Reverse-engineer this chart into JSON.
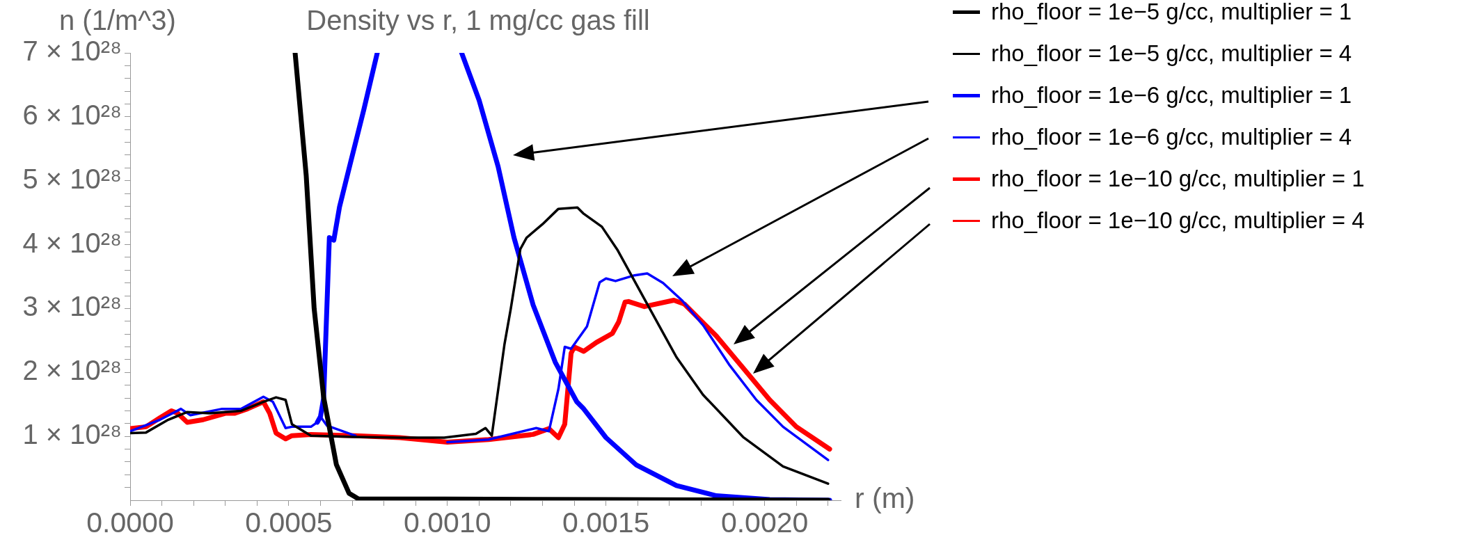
{
  "chart_data": {
    "type": "line",
    "title": "Density vs r, 1 mg/cc gas fill",
    "xlabel": "r (m)",
    "ylabel": "n (1/m^3)",
    "legend": "right",
    "grid": false,
    "marker": "none",
    "line_style": "solid",
    "xlim": [
      0,
      0.00224
    ],
    "ylim": [
      0,
      7e+28
    ],
    "xticks": [
      {
        "value": 0,
        "label": "0.0000"
      },
      {
        "value": 0.0001,
        "label": null
      },
      {
        "value": 0.0002,
        "label": null
      },
      {
        "value": 0.0003,
        "label": null
      },
      {
        "value": 0.0004,
        "label": null
      },
      {
        "value": 0.0005,
        "label": "0.0005"
      },
      {
        "value": 0.0006,
        "label": null
      },
      {
        "value": 0.0007,
        "label": null
      },
      {
        "value": 0.0008,
        "label": null
      },
      {
        "value": 0.0009,
        "label": null
      },
      {
        "value": 0.001,
        "label": "0.0010"
      },
      {
        "value": 0.0011,
        "label": null
      },
      {
        "value": 0.0012,
        "label": null
      },
      {
        "value": 0.0013,
        "label": null
      },
      {
        "value": 0.0014,
        "label": null
      },
      {
        "value": 0.0015,
        "label": "0.0015"
      },
      {
        "value": 0.0016,
        "label": null
      },
      {
        "value": 0.0017,
        "label": null
      },
      {
        "value": 0.0018,
        "label": null
      },
      {
        "value": 0.0019,
        "label": null
      },
      {
        "value": 0.002,
        "label": "0.0020"
      },
      {
        "value": 0.0021,
        "label": null
      },
      {
        "value": 0.0022,
        "label": null
      }
    ],
    "yticks": [
      {
        "value": 2e+27,
        "label": null
      },
      {
        "value": 4e+27,
        "label": null
      },
      {
        "value": 6e+27,
        "label": null
      },
      {
        "value": 8e+27,
        "label": null
      },
      {
        "value": 1e+28,
        "label": "1 × 10²⁸"
      },
      {
        "value": 1.2e+28,
        "label": null
      },
      {
        "value": 1.4e+28,
        "label": null
      },
      {
        "value": 1.6e+28,
        "label": null
      },
      {
        "value": 1.8e+28,
        "label": null
      },
      {
        "value": 2e+28,
        "label": "2 × 10²⁸"
      },
      {
        "value": 2.2e+28,
        "label": null
      },
      {
        "value": 2.4e+28,
        "label": null
      },
      {
        "value": 2.6e+28,
        "label": null
      },
      {
        "value": 2.8e+28,
        "label": null
      },
      {
        "value": 3e+28,
        "label": "3 × 10²⁸"
      },
      {
        "value": 3.2e+28,
        "label": null
      },
      {
        "value": 3.4e+28,
        "label": null
      },
      {
        "value": 3.6e+28,
        "label": null
      },
      {
        "value": 3.8e+28,
        "label": null
      },
      {
        "value": 4e+28,
        "label": "4 × 10²⁸"
      },
      {
        "value": 4.2e+28,
        "label": null
      },
      {
        "value": 4.4e+28,
        "label": null
      },
      {
        "value": 4.6e+28,
        "label": null
      },
      {
        "value": 4.8e+28,
        "label": null
      },
      {
        "value": 5e+28,
        "label": "5 × 10²⁸"
      },
      {
        "value": 5.2e+28,
        "label": null
      },
      {
        "value": 5.4e+28,
        "label": null
      },
      {
        "value": 5.6e+28,
        "label": null
      },
      {
        "value": 5.8e+28,
        "label": null
      },
      {
        "value": 6e+28,
        "label": "6 × 10²⁸"
      },
      {
        "value": 6.2e+28,
        "label": null
      },
      {
        "value": 6.4e+28,
        "label": null
      },
      {
        "value": 6.6e+28,
        "label": null
      },
      {
        "value": 6.8e+28,
        "label": null
      },
      {
        "value": 7e+28,
        "label": "7 × 10²⁸"
      }
    ],
    "series": [
      {
        "name": "rho_floor = 1e−5 g/cc, multiplier = 1",
        "color": "#000000",
        "x": [
          0.00052,
          0.000555,
          0.00058,
          0.00061,
          0.00065,
          0.00069,
          0.00072,
          0.00099,
          0.0015,
          0.0022
        ],
        "values": [
          7e+28,
          5.08e+28,
          3e+28,
          1.61e+28,
          5.6e+27,
          1.1e+27,
          2e+26,
          2e+26,
          1e+26,
          0
        ]
      },
      {
        "name": "rho_floor = 1e−5 g/cc, multiplier = 4",
        "color": "#000000",
        "x": [
          0,
          5e-05,
          0.00012,
          0.00018,
          0.00025,
          0.00035,
          0.00042,
          0.00046,
          0.00049,
          0.00051,
          0.00057,
          0.00071,
          0.00085,
          0.00099,
          0.00109,
          0.00112,
          0.00114,
          0.00118,
          0.0012,
          0.00123,
          0.00125,
          0.0013,
          0.00135,
          0.00141,
          0.001428,
          0.001487,
          0.001537,
          0.001621,
          0.001722,
          0.001806,
          0.001932,
          0.002058,
          0.0022
        ],
        "values": [
          1.05e+28,
          1.06e+28,
          1.26e+28,
          1.38e+28,
          1.36e+28,
          1.4e+28,
          1.54e+28,
          1.61e+28,
          1.57e+28,
          1.19e+28,
          1.01e+28,
          9.9e+27,
          9.8e+27,
          9.8e+27,
          1.04e+28,
          1.13e+28,
          1.01e+28,
          2.44e+28,
          3e+28,
          3.93e+28,
          4.11e+28,
          4.32e+28,
          4.56e+28,
          4.58e+28,
          4.49e+28,
          4.28e+28,
          3.91e+28,
          3.15e+28,
          2.24e+28,
          1.65e+28,
          9.9e+27,
          5.3e+27,
          2.6e+27
        ]
      },
      {
        "name": "rho_floor = 1e−6 g/cc, multiplier = 1",
        "color": "#0000ff",
        "x": [
          0.00059,
          0.0006,
          0.00061,
          0.000628,
          0.000642,
          0.00066,
          0.000695,
          0.000737,
          0.000779,
          0.0009,
          0.001045,
          0.0011,
          0.00116,
          0.00121,
          0.00127,
          0.00134,
          0.001408,
          0.001428,
          0.0015,
          0.001596,
          0.001722,
          0.001848,
          0.002016,
          0.002205
        ],
        "values": [
          1.22e+28,
          1.31e+28,
          1.6e+28,
          4.11e+28,
          4.07e+28,
          4.59e+28,
          5.29e+28,
          6.12e+28,
          7e+28,
          null,
          7e+28,
          6.26e+28,
          5.22e+28,
          4.11e+28,
          3.06e+28,
          2.16e+28,
          1.54e+28,
          1.44e+28,
          9.8e+27,
          5.5e+27,
          2.3e+27,
          7e+26,
          1e+26,
          0
        ]
      },
      {
        "name": "rho_floor = 1e−6 g/cc, multiplier = 4",
        "color": "#0000ff",
        "x": [
          0,
          9.4e-05,
          0.00016,
          0.00019,
          0.00029,
          0.00035,
          0.00042,
          0.00045,
          0.00049,
          0.00051,
          0.00057,
          0.00059,
          0.0006,
          0.00062,
          0.00071,
          0.00085,
          0.001,
          0.00113,
          0.00128,
          0.00132,
          0.00135,
          0.00137,
          0.00139,
          0.00144,
          0.00148,
          0.0015,
          0.00153,
          0.00159,
          0.00163,
          0.00168,
          0.001739,
          0.001806,
          0.00189,
          0.001974,
          0.002058,
          0.0022
        ],
        "values": [
          1.08e+28,
          1.26e+28,
          1.43e+28,
          1.33e+28,
          1.43e+28,
          1.43e+28,
          1.62e+28,
          1.54e+28,
          1.13e+28,
          1.15e+28,
          1.15e+28,
          1.22e+28,
          1.31e+28,
          1.17e+28,
          1.01e+28,
          null,
          9.1e+27,
          9.5e+27,
          1.13e+28,
          1.08e+28,
          1.74e+28,
          2.4e+28,
          2.37e+28,
          2.72e+28,
          3.41e+28,
          3.47e+28,
          3.43e+28,
          3.52e+28,
          3.55e+28,
          3.4e+28,
          3.13e+28,
          2.74e+28,
          2.11e+28,
          1.57e+28,
          1.15e+28,
          6.3e+27
        ]
      },
      {
        "name": "rho_floor = 1e−10 g/cc, multiplier = 1",
        "color": "#ff0000",
        "x": [
          0,
          5e-05,
          9.4e-05,
          0.00013,
          0.00015,
          0.00018,
          0.00023,
          0.0003,
          0.00033,
          0.00037,
          0.00042,
          0.00044,
          0.00046,
          0.00049,
          0.00051,
          0.00057,
          0.00071,
          0.00085,
          0.001,
          0.00113,
          0.00127,
          0.00132,
          0.00135,
          0.00137,
          0.00139,
          0.0014,
          0.00143,
          0.00147,
          0.00152,
          0.00154,
          0.00156,
          0.001571,
          0.001621,
          0.001714,
          0.001747,
          0.001848,
          0.001932,
          0.002016,
          0.0021,
          0.002205
        ],
        "values": [
          1.12e+28,
          1.15e+28,
          1.29e+28,
          1.4e+28,
          1.36e+28,
          1.22e+28,
          1.26e+28,
          1.36e+28,
          1.36e+28,
          1.43e+28,
          1.54e+28,
          1.36e+28,
          1.05e+28,
          9.6e+27,
          1.01e+28,
          1.03e+28,
          1.01e+28,
          9.8e+27,
          9.1e+27,
          9.5e+27,
          1.03e+28,
          1.12e+28,
          9.8e+27,
          1.19e+28,
          2.3e+28,
          2.4e+28,
          2.33e+28,
          2.47e+28,
          2.61e+28,
          2.79e+28,
          3.1e+28,
          3.11e+28,
          3.03e+28,
          3.13e+28,
          3.07e+28,
          2.57e+28,
          2.07e+28,
          1.57e+28,
          1.15e+28,
          8e+27
        ]
      },
      {
        "name": "rho_floor = 1e−10 g/cc, multiplier = 4",
        "color": "#ff0000"
      }
    ]
  }
}
